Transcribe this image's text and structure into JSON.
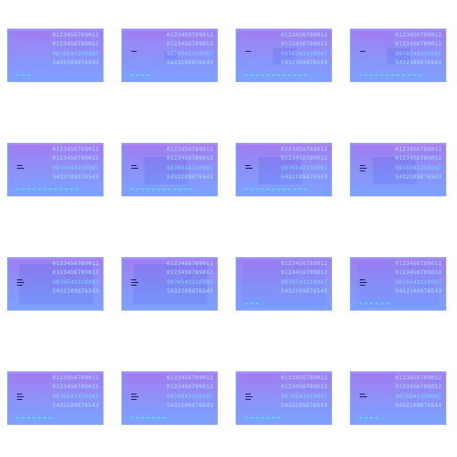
{
  "frames": [
    {
      "lines": [
        "0123456789012",
        "0123456789012",
        "9876543210987",
        "5432109876543"
      ],
      "marker": 0,
      "inner": "none",
      "dots": 3
    },
    {
      "lines": [
        "0123456789012",
        "0123456789012",
        "9876543210987",
        "5432109876543"
      ],
      "marker": 1,
      "inner": "tiny",
      "dots": 4
    },
    {
      "lines": [
        "0123456789012",
        "0123456789012",
        "9876543210987",
        "5432109876543"
      ],
      "marker": 1,
      "inner": "small",
      "dots": 12
    },
    {
      "lines": [
        "0123456789012",
        "0123456789012",
        "9876543210987",
        "5432109876543"
      ],
      "marker": 1,
      "inner": "small",
      "dots": 12
    },
    {
      "lines": [
        "0123456789012",
        "0123456789012",
        "9876543210987",
        "5432109876543"
      ],
      "marker": 2,
      "inner": "none",
      "dots": 12
    },
    {
      "lines": [
        "0123456789012",
        "0123456789012",
        "9876543210987",
        "5432109876543"
      ],
      "marker": 2,
      "inner": "medium",
      "dots": 12
    },
    {
      "lines": [
        "0123456789012",
        "0123456789012",
        "9876543210987",
        "5432109876543"
      ],
      "marker": 2,
      "inner": "medium",
      "dots": 12
    },
    {
      "lines": [
        "0123456789012",
        "0123456789012",
        "9876543210987",
        "5432109876543"
      ],
      "marker": 3,
      "inner": "medium",
      "dots": 0
    },
    {
      "lines": [
        "0123456789012",
        "0123456789012",
        "9876543210987",
        "5432109876543"
      ],
      "marker": 3,
      "inner": "large",
      "dots": 0
    },
    {
      "lines": [
        "0123456789012",
        "0123456789012",
        "9876543210987",
        "5432109876543"
      ],
      "marker": 3,
      "inner": "large",
      "dots": 0
    },
    {
      "lines": [
        "0123456789012",
        "0123456789012",
        "9876543210987",
        "5432109876543"
      ],
      "marker": 0,
      "inner": "faint",
      "dots": 3
    },
    {
      "lines": [
        "0123456789012",
        "0123456789012",
        "9876543210987",
        "5432109876543"
      ],
      "marker": 3,
      "inner": "faint",
      "dots": 6
    },
    {
      "lines": [
        "0123456789012",
        "0123456789012",
        "9876543210987",
        "5432109876543"
      ],
      "marker": 3,
      "inner": "none",
      "dots": 7
    },
    {
      "lines": [
        "0123456789012",
        "0123456789012",
        "9876543210987",
        "5432109876543"
      ],
      "marker": 3,
      "inner": "none",
      "dots": 7
    },
    {
      "lines": [
        "0123456789012",
        "0123456789012",
        "9876543210987",
        "5432109876543"
      ],
      "marker": 3,
      "inner": "none",
      "dots": 7
    },
    {
      "lines": [
        "0123456789012",
        "0123456789012",
        "9876543210987",
        "5432109876543"
      ],
      "marker": 2,
      "inner": "none",
      "dots": 4
    }
  ]
}
